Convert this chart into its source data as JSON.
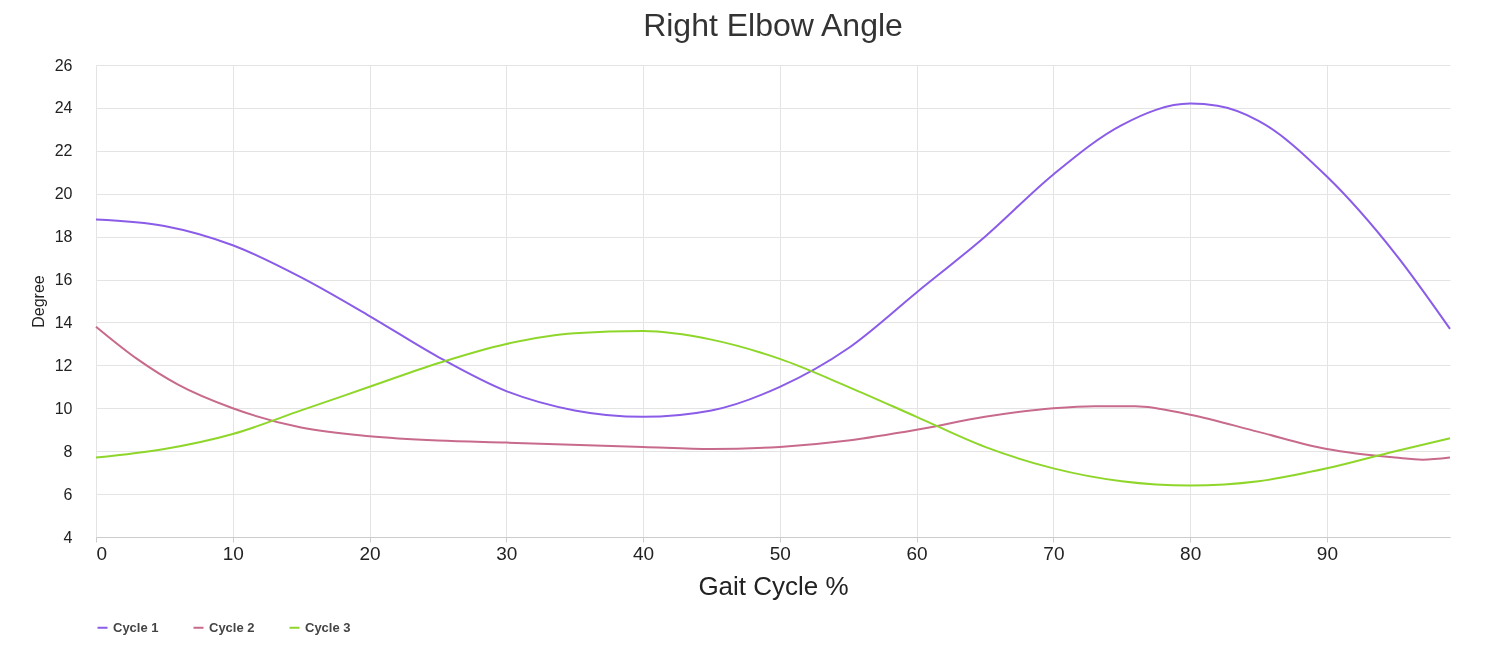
{
  "chart_data": {
    "type": "line",
    "title": "Right Elbow Angle",
    "xlabel": "Gait Cycle %",
    "ylabel": "Degree",
    "xlim": [
      0,
      99
    ],
    "xticks": [
      0,
      10,
      20,
      30,
      40,
      50,
      60,
      70,
      80,
      90
    ],
    "ylim": [
      4,
      26
    ],
    "yticks": [
      4,
      6,
      8,
      10,
      12,
      14,
      16,
      18,
      20,
      22,
      24,
      26
    ],
    "grid": true,
    "legend": "bottom",
    "marker": "none",
    "line_style": "solid",
    "series": [
      {
        "name": "Cycle 1",
        "color": "#8a5ce8",
        "x": [
          0,
          5,
          10,
          15,
          20,
          25,
          30,
          35,
          40,
          45,
          50,
          55,
          60,
          65,
          70,
          75,
          80,
          82,
          85,
          90,
          95,
          99
        ],
        "values": [
          18.8,
          18.5,
          17.6,
          16.1,
          14.3,
          12.4,
          10.8,
          9.9,
          9.6,
          9.9,
          11.0,
          12.8,
          15.4,
          18.0,
          20.9,
          23.2,
          24.2,
          24.1,
          23.4,
          20.8,
          17.2,
          13.7
        ]
      },
      {
        "name": "Cycle 2",
        "color": "#c86a8c",
        "x": [
          0,
          3,
          6,
          10,
          15,
          20,
          25,
          30,
          40,
          45,
          50,
          55,
          60,
          65,
          70,
          73,
          76,
          80,
          85,
          90,
          95,
          97,
          99
        ],
        "values": [
          13.8,
          12.3,
          11.1,
          10.0,
          9.1,
          8.7,
          8.5,
          8.4,
          8.2,
          8.1,
          8.2,
          8.5,
          9.0,
          9.6,
          10.0,
          10.1,
          10.1,
          9.7,
          8.9,
          8.1,
          7.7,
          7.6,
          7.7
        ]
      },
      {
        "name": "Cycle 3",
        "color": "#8fd62a",
        "x": [
          0,
          5,
          10,
          15,
          20,
          25,
          30,
          35,
          40,
          45,
          50,
          55,
          60,
          65,
          70,
          75,
          80,
          85,
          90,
          95,
          99
        ],
        "values": [
          7.7,
          8.1,
          8.8,
          9.9,
          11.0,
          12.1,
          13.0,
          13.5,
          13.6,
          13.2,
          12.3,
          11.0,
          9.6,
          8.2,
          7.2,
          6.6,
          6.4,
          6.6,
          7.2,
          8.0,
          8.6
        ]
      }
    ]
  }
}
